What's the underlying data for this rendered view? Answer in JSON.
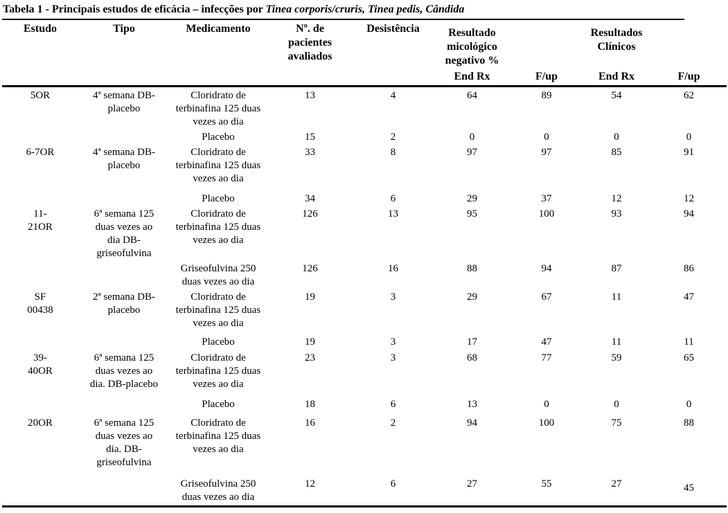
{
  "title": {
    "prefix": "Tabela 1 - Principais estudos de eficácia – infecções por ",
    "italic": "Tinea corporis/cruris, Tinea pedis, Cândida"
  },
  "table": {
    "headers": {
      "estudo": "Estudo",
      "tipo": "Tipo",
      "medicamento": "Medicamento",
      "pacientes": "Nº. de\npacientes\navaliados",
      "desistencia": "Desistência",
      "mico_group": "Resultado\nmicológico\nnegativo %",
      "clinico_group": "Resultados\nClínicos",
      "mico_end_rx": "End Rx",
      "mico_fup": "F/up",
      "clin_end_rx": "End Rx",
      "clin_fup": "F/up"
    },
    "rows": [
      {
        "estudo": "5OR",
        "tipo": "4ª semana DB-\nplacebo",
        "medicamento": "Cloridrato de\nterbinafina 125 duas\nvezes ao dia",
        "pacientes": "13",
        "desistencia": "4",
        "mico_end_rx": "64",
        "mico_fup": "89",
        "clin_end_rx": "54",
        "clin_fup": "62"
      },
      {
        "estudo": "",
        "tipo": "",
        "medicamento": "Placebo",
        "pacientes": "15",
        "desistencia": "2",
        "mico_end_rx": "0",
        "mico_fup": "0",
        "clin_end_rx": "0",
        "clin_fup": "0"
      },
      {
        "estudo": "6-7OR",
        "tipo": "4ª semana DB-\nplacebo",
        "medicamento": "Cloridrato de\nterbinafina 125 duas\nvezes ao dia",
        "pacientes": "33",
        "desistencia": "8",
        "mico_end_rx": "97",
        "mico_fup": "97",
        "clin_end_rx": "85",
        "clin_fup": "91"
      },
      {
        "estudo": "",
        "tipo": "",
        "medicamento": "Placebo",
        "pacientes": "34",
        "desistencia": "6",
        "mico_end_rx": "29",
        "mico_fup": "37",
        "clin_end_rx": "12",
        "clin_fup": "12"
      },
      {
        "estudo": "11-\n21OR",
        "tipo": "6ª semana 125\nduas vezes ao\ndia DB-\ngriseofulvina",
        "medicamento": "Cloridrato de\nterbinafina 125 duas\nvezes ao dia",
        "pacientes": "126",
        "desistencia": "13",
        "mico_end_rx": "95",
        "mico_fup": "100",
        "clin_end_rx": "93",
        "clin_fup": "94"
      },
      {
        "estudo": "",
        "tipo": "",
        "medicamento": "Griseofulvina 250\nduas vezes ao dia",
        "pacientes": "126",
        "desistencia": "16",
        "mico_end_rx": "88",
        "mico_fup": "94",
        "clin_end_rx": "87",
        "clin_fup": "86"
      },
      {
        "estudo": "SF\n00438",
        "tipo": "2ª semana DB-\nplacebo",
        "medicamento": "Cloridrato de\nterbinafina 125 duas\nvezes ao dia",
        "pacientes": "19",
        "desistencia": "3",
        "mico_end_rx": "29",
        "mico_fup": "67",
        "clin_end_rx": "11",
        "clin_fup": "47"
      },
      {
        "estudo": "",
        "tipo": "",
        "medicamento": "Placebo",
        "pacientes": "19",
        "desistencia": "3",
        "mico_end_rx": "17",
        "mico_fup": "47",
        "clin_end_rx": "11",
        "clin_fup": "11"
      },
      {
        "estudo": "39-\n40OR",
        "tipo": "6ª semana 125\nduas vezes ao\ndia. DB-placebo",
        "medicamento": "Cloridrato de\nterbinafina 125 duas\nvezes ao dia",
        "pacientes": "23",
        "desistencia": "3",
        "mico_end_rx": "68",
        "mico_fup": "77",
        "clin_end_rx": "59",
        "clin_fup": "65"
      },
      {
        "estudo": "",
        "tipo": "",
        "medicamento": "Placebo",
        "pacientes": "18",
        "desistencia": "6",
        "mico_end_rx": "13",
        "mico_fup": "0",
        "clin_end_rx": "0",
        "clin_fup": "0"
      },
      {
        "estudo": "20OR",
        "tipo": "6ª semana 125\nduas vezes ao\ndia. DB-\ngriseofulvina",
        "medicamento": "Cloridrato de\nterbinafina 125 duas\nvezes ao dia",
        "pacientes": "16",
        "desistencia": "2",
        "mico_end_rx": "94",
        "mico_fup": "100",
        "clin_end_rx": "75",
        "clin_fup": "88"
      },
      {
        "estudo": "",
        "tipo": "",
        "medicamento": "Griseofulvina 250\nduas vezes ao dia",
        "pacientes": "12",
        "desistencia": "6",
        "mico_end_rx": "27",
        "mico_fup": "55",
        "clin_end_rx": "27",
        "clin_fup": "45"
      }
    ]
  }
}
